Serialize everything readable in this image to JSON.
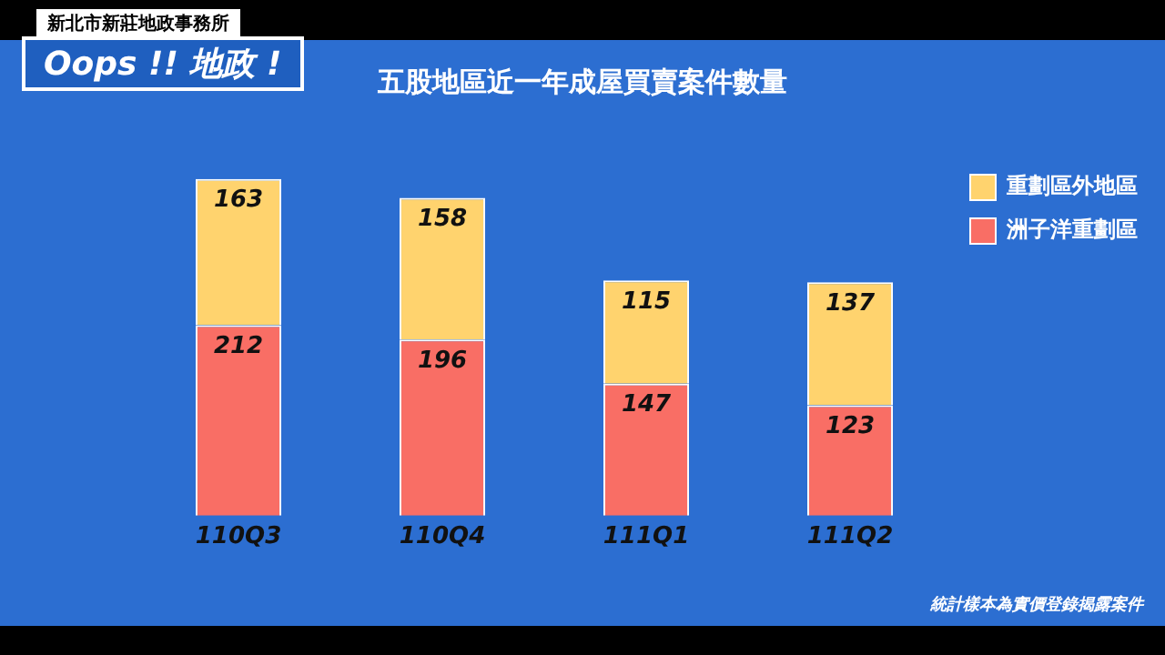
{
  "chart_data": {
    "type": "bar",
    "title": "五股地區近一年成屋買賣案件數量",
    "categories": [
      "110Q3",
      "110Q4",
      "111Q1",
      "111Q2"
    ],
    "series": [
      {
        "name": "洲子洋重劃區",
        "color": "#f96e65",
        "values": [
          212,
          196,
          147,
          123
        ]
      },
      {
        "name": "重劃區外地區",
        "color": "#ffd36e",
        "values": [
          163,
          158,
          115,
          137
        ]
      }
    ],
    "stacked": true,
    "data_labels": true,
    "grid": false,
    "legend": "top right",
    "annotations": [
      "新北市新莊地政事務所",
      "Oops !! 地政 !",
      "統計樣本為實價登錄揭露案件"
    ]
  }
}
